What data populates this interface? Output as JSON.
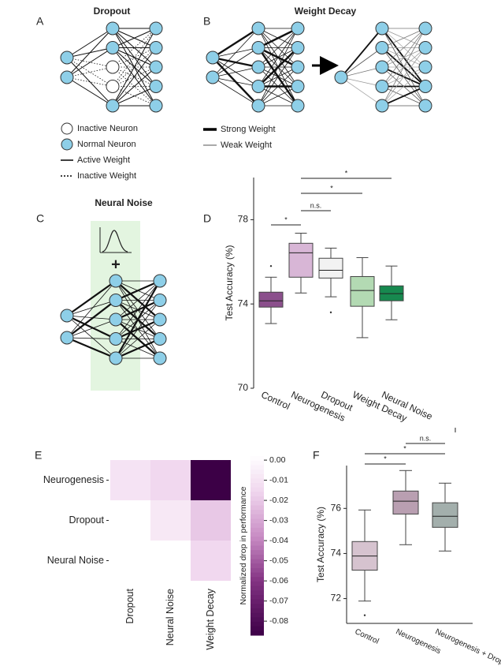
{
  "panel_letters": [
    "A",
    "B",
    "C",
    "D",
    "E",
    "F"
  ],
  "diagrams": {
    "dropout": {
      "title": "Dropout",
      "legend": [
        "Inactive Neuron",
        "Normal Neuron",
        "Active Weight",
        "Inactive Weight"
      ]
    },
    "weight_decay": {
      "title": "Weight Decay",
      "legend": [
        "Strong Weight",
        "Weak Weight"
      ]
    },
    "neural_noise": {
      "title": "Neural Noise",
      "plus": "+"
    }
  },
  "chart_data": [
    {
      "type": "box",
      "ylabel": "Test Accuracy (%)",
      "categories": [
        "Control",
        "Neurogenesis",
        "Dropout",
        "Weight Decay",
        "Neural Noise"
      ],
      "colors": [
        "#8b4f8c",
        "#d8b6d6",
        "#f2f2f2",
        "#b3dab3",
        "#17894f"
      ],
      "boxes": [
        {
          "min": 73.07,
          "q1": 73.85,
          "median": 74.15,
          "q3": 74.56,
          "max": 75.27,
          "outliers": [
            75.8
          ]
        },
        {
          "min": 74.52,
          "q1": 75.27,
          "median": 76.43,
          "q3": 76.88,
          "max": 77.36,
          "outliers": []
        },
        {
          "min": 74.34,
          "q1": 75.23,
          "median": 75.6,
          "q3": 76.17,
          "max": 76.65,
          "outliers": [
            73.6
          ]
        },
        {
          "min": 72.4,
          "q1": 73.89,
          "median": 74.64,
          "q3": 75.3,
          "max": 76.2,
          "outliers": []
        },
        {
          "min": 73.25,
          "q1": 74.15,
          "median": 74.49,
          "q3": 74.86,
          "max": 75.8,
          "outliers": []
        }
      ],
      "ylim": [
        70,
        80
      ],
      "yticks": [
        70,
        74,
        78
      ],
      "annotations": [
        "*",
        "n.s.",
        "*",
        "*"
      ]
    },
    {
      "type": "heatmap",
      "rows": [
        "Neurogenesis",
        "Dropout",
        "Neural Noise"
      ],
      "columns": [
        "Dropout",
        "Neural Noise",
        "Weight Decay"
      ],
      "values": [
        [
          -0.01,
          -0.015,
          -0.09
        ],
        [
          null,
          -0.008,
          -0.02
        ],
        [
          null,
          null,
          -0.015
        ]
      ],
      "colorbar_label": "Normalized drop in performance",
      "clim": [
        -0.087,
        0.002
      ],
      "cticks": [
        {
          "value": 0,
          "label": "0.00"
        },
        {
          "value": -0.01,
          "label": "-0.01"
        },
        {
          "value": -0.02,
          "label": "-0.02"
        },
        {
          "value": -0.03,
          "label": "-0.03"
        },
        {
          "value": -0.04,
          "label": "-0.04"
        },
        {
          "value": -0.05,
          "label": "-0.05"
        },
        {
          "value": -0.06,
          "label": "-0.06"
        },
        {
          "value": -0.07,
          "label": "-0.07"
        },
        {
          "value": -0.08,
          "label": "-0.08"
        }
      ]
    },
    {
      "type": "box",
      "ylabel": "Test Accuracy (%)",
      "categories": [
        "Control",
        "Neurogenesis",
        "Neurogenesis + Dropout"
      ],
      "colors": [
        "#d6c3cf",
        "#b99fb1",
        "#a3afac"
      ],
      "boxes": [
        {
          "min": 71.89,
          "q1": 73.26,
          "median": 73.89,
          "q3": 74.53,
          "max": 75.93,
          "outliers": [
            71.26
          ]
        },
        {
          "min": 74.39,
          "q1": 75.75,
          "median": 76.32,
          "q3": 76.77,
          "max": 77.68,
          "outliers": []
        },
        {
          "min": 74.11,
          "q1": 75.16,
          "median": 75.65,
          "q3": 76.25,
          "max": 77.12,
          "outliers": []
        }
      ],
      "ylim": [
        70.9,
        77.9
      ],
      "yticks": [
        72,
        74,
        76
      ],
      "annotations": [
        "*",
        "*",
        "n.s."
      ]
    }
  ]
}
